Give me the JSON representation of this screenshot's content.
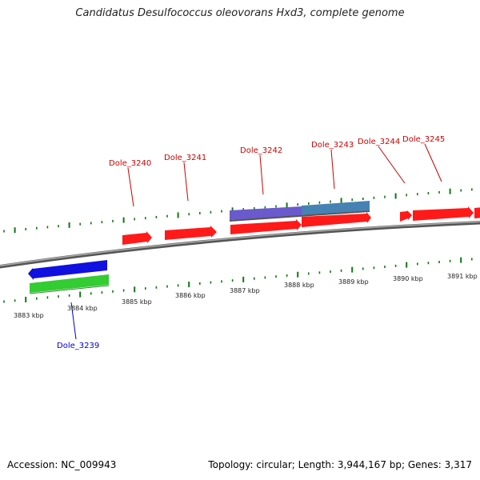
{
  "title": "Candidatus Desulfococcus oleovorans Hxd3, complete genome",
  "footer": {
    "accession": "Accession: NC_009943",
    "summary": "Topology: circular; Length: 3,944,167 bp; Genes: 3,317"
  },
  "colors": {
    "forward_gene": "#ff1a1a",
    "reverse_gene": "#1010e0",
    "rna_gene": "#33cc33",
    "feature_purple": "#6a5acd",
    "feature_steel": "#4682b4",
    "tick": "#117711",
    "backbone": "#888888",
    "forward_label": "#cc0000",
    "reverse_label": "#0000cc"
  },
  "kbp_labels": [
    "3883 kbp",
    "3884 kbp",
    "3885 kbp",
    "3886 kbp",
    "3887 kbp",
    "3888 kbp",
    "3889 kbp",
    "3890 kbp",
    "3891 kbp"
  ],
  "forward_genes": [
    {
      "label": "Dole_3240"
    },
    {
      "label": "Dole_3241"
    },
    {
      "label": "Dole_3242"
    },
    {
      "label": "Dole_3243"
    },
    {
      "label": "Dole_3244"
    },
    {
      "label": "Dole_3245"
    }
  ],
  "reverse_genes": [
    {
      "label": "Dole_3239"
    }
  ]
}
